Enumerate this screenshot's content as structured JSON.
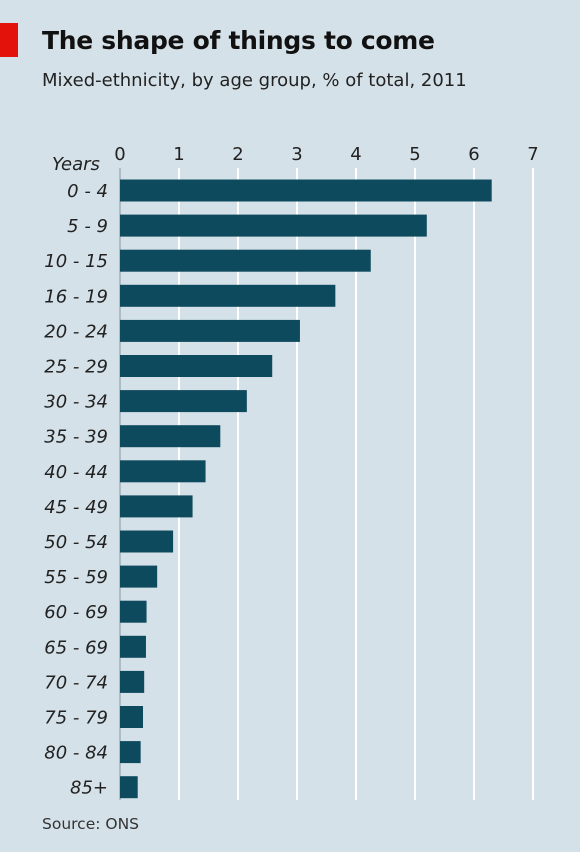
{
  "title": "The shape of things to come",
  "subtitle": "Mixed-ethnicity, by age group, % of total, 2011",
  "source": "Source: ONS",
  "colors": {
    "background": "#d5e1e8",
    "bar": "#0e4a5d",
    "accent": "#e3120b",
    "gridline": "#ffffff"
  },
  "chart_data": {
    "type": "bar",
    "orientation": "horizontal",
    "category_axis_label": "Years",
    "categories": [
      "0 - 4",
      "5 - 9",
      "10 - 15",
      "16 - 19",
      "20 - 24",
      "25 - 29",
      "30 - 34",
      "35 - 39",
      "40 - 44",
      "45 - 49",
      "50 - 54",
      "55 - 59",
      "60 - 69",
      "65 - 69",
      "70 - 74",
      "75 - 79",
      "80 - 84",
      "85+"
    ],
    "values": [
      6.3,
      5.2,
      4.25,
      3.65,
      3.05,
      2.58,
      2.15,
      1.7,
      1.45,
      1.23,
      0.9,
      0.63,
      0.45,
      0.44,
      0.41,
      0.39,
      0.35,
      0.3
    ],
    "xlim": [
      0,
      7
    ],
    "xticks": [
      "0",
      "1",
      "2",
      "3",
      "4",
      "5",
      "6",
      "7"
    ],
    "tick_position": "top",
    "grid": true,
    "legend": "none"
  }
}
